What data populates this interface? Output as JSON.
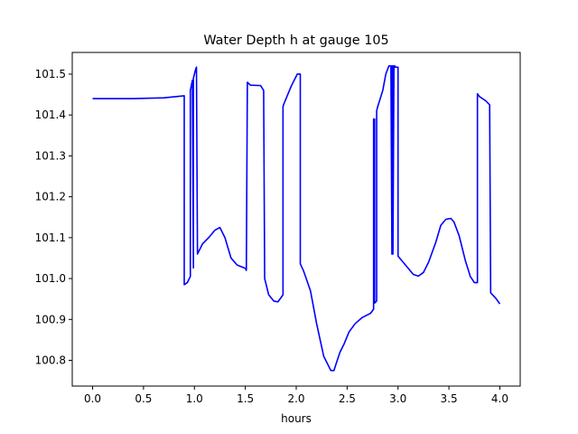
{
  "chart_data": {
    "type": "line",
    "title": "Water Depth h at gauge 105",
    "xlabel": "hours",
    "ylabel": "",
    "xlim": [
      -0.2,
      4.2
    ],
    "ylim": [
      100.737,
      101.553
    ],
    "grid": false,
    "x_ticks": [
      0.0,
      0.5,
      1.0,
      1.5,
      2.0,
      2.5,
      3.0,
      3.5,
      4.0
    ],
    "x_tick_labels": [
      "0.0",
      "0.5",
      "1.0",
      "1.5",
      "2.0",
      "2.5",
      "3.0",
      "3.5",
      "4.0"
    ],
    "y_ticks": [
      100.8,
      100.9,
      101.0,
      101.1,
      101.2,
      101.3,
      101.4,
      101.5
    ],
    "y_tick_labels": [
      "100.8",
      "100.9",
      "101.0",
      "101.1",
      "101.2",
      "101.3",
      "101.4",
      "101.5"
    ],
    "series": [
      {
        "color": "#0000ff",
        "x": [
          0.0,
          0.4,
          0.7,
          0.9,
          0.9,
          0.93,
          0.96,
          0.96,
          0.98,
          0.99,
          0.99,
          1.01,
          1.02,
          1.03,
          1.03,
          1.08,
          1.14,
          1.2,
          1.25,
          1.3,
          1.36,
          1.42,
          1.5,
          1.51,
          1.52,
          1.55,
          1.65,
          1.68,
          1.69,
          1.73,
          1.78,
          1.82,
          1.87,
          1.87,
          1.88,
          1.95,
          2.01,
          2.04,
          2.04,
          2.07,
          2.14,
          2.2,
          2.27,
          2.34,
          2.37,
          2.39,
          2.43,
          2.47,
          2.52,
          2.58,
          2.65,
          2.73,
          2.76,
          2.76,
          2.77,
          2.77,
          2.79,
          2.79,
          2.8,
          2.85,
          2.88,
          2.91,
          2.93,
          2.94,
          2.94,
          2.95,
          2.95,
          2.96,
          2.96,
          2.97,
          2.97,
          3.0,
          3.0,
          3.05,
          3.1,
          3.15,
          3.2,
          3.25,
          3.3,
          3.37,
          3.42,
          3.47,
          3.52,
          3.55,
          3.6,
          3.66,
          3.71,
          3.75,
          3.78,
          3.78,
          3.8,
          3.86,
          3.9,
          3.91,
          3.96,
          4.0
        ],
        "y": [
          101.44,
          101.44,
          101.442,
          101.447,
          100.985,
          100.99,
          101.005,
          101.46,
          101.485,
          101.026,
          101.49,
          101.51,
          101.517,
          101.06,
          101.06,
          101.085,
          101.1,
          101.118,
          101.125,
          101.1,
          101.05,
          101.033,
          101.025,
          101.02,
          101.48,
          101.473,
          101.472,
          101.46,
          101.0,
          100.96,
          100.945,
          100.943,
          100.96,
          101.42,
          101.428,
          101.47,
          101.5,
          101.5,
          101.036,
          101.02,
          100.97,
          100.89,
          100.81,
          100.775,
          100.775,
          100.79,
          100.82,
          100.84,
          100.87,
          100.89,
          100.905,
          100.915,
          100.925,
          101.39,
          101.39,
          100.94,
          100.945,
          101.41,
          101.42,
          101.46,
          101.5,
          101.52,
          101.52,
          101.06,
          101.52,
          101.52,
          101.06,
          101.52,
          101.52,
          101.52,
          101.517,
          101.517,
          101.055,
          101.04,
          101.025,
          101.01,
          101.006,
          101.015,
          101.04,
          101.088,
          101.13,
          101.145,
          101.147,
          101.138,
          101.105,
          101.045,
          101.005,
          100.99,
          100.99,
          101.452,
          101.445,
          101.435,
          101.425,
          100.965,
          100.952,
          100.938
        ]
      }
    ]
  }
}
